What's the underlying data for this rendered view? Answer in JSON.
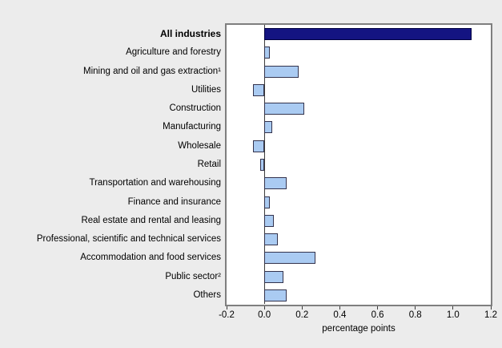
{
  "chart_data": {
    "type": "bar",
    "orientation": "horizontal",
    "title": "",
    "xlabel": "percentage points",
    "categories": [
      "All industries",
      "Agriculture and forestry",
      "Mining and oil and gas extraction¹",
      "Utilities",
      "Construction",
      "Manufacturing",
      "Wholesale",
      "Retail",
      "Transportation and warehousing",
      "Finance and insurance",
      "Real estate and rental and leasing",
      "Professional, scientific and technical services",
      "Accommodation and food services",
      "Public sector²",
      "Others"
    ],
    "values": [
      1.1,
      0.03,
      0.18,
      -0.06,
      0.21,
      0.04,
      -0.06,
      -0.02,
      0.12,
      0.03,
      0.05,
      0.07,
      0.27,
      0.1,
      0.12
    ],
    "bold_categories": [
      "All industries"
    ],
    "highlight_category": "All industries",
    "xlim": [
      -0.2,
      1.2
    ],
    "x_ticks": [
      {
        "value": -0.2,
        "label": "-0.2"
      },
      {
        "value": 0.0,
        "label": "0.0"
      },
      {
        "value": 0.2,
        "label": "0.2"
      },
      {
        "value": 0.4,
        "label": "0.4"
      },
      {
        "value": 0.6,
        "label": "0.6"
      },
      {
        "value": 0.8,
        "label": "0.8"
      },
      {
        "value": 1.0,
        "label": "1.0"
      },
      {
        "value": 1.2,
        "label": "1.2"
      }
    ],
    "grid": "off",
    "legend": "none",
    "colors": {
      "highlight_bar_fill": "#141482",
      "bar_fill": "#aacbf2",
      "bar_border": "#33334d",
      "plot_background": "#ffffff",
      "plot_border": "#7f7f7f",
      "zero_line": "#3c3c3c",
      "page_background": "#ececec",
      "text": "#000000"
    }
  }
}
